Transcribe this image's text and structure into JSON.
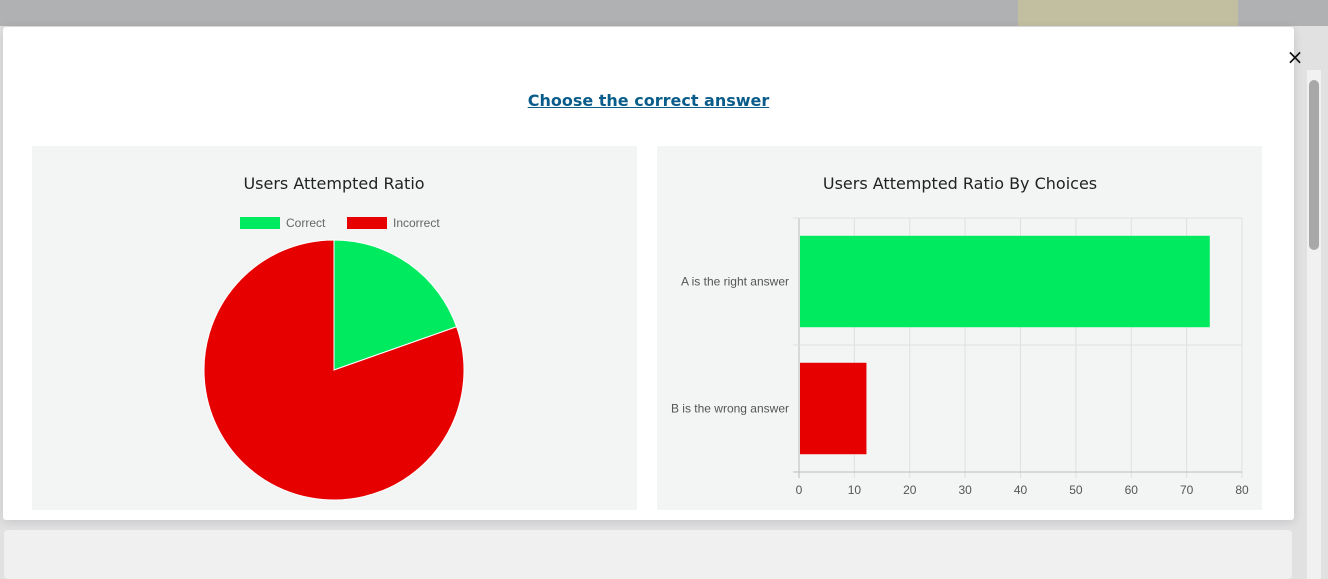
{
  "modal": {
    "question": "Choose the correct answer",
    "close_symbol": "×"
  },
  "colors": {
    "correct": "#00ea60",
    "incorrect": "#e60000",
    "link": "#0a5d8a"
  },
  "chart_data": [
    {
      "type": "pie",
      "title": "Users Attempted Ratio",
      "legend_position": "top",
      "labels": [
        "Correct",
        "Incorrect"
      ],
      "values": [
        19.6,
        80.4
      ],
      "unit": "%"
    },
    {
      "type": "bar",
      "orientation": "horizontal",
      "title": "Users Attempted Ratio By Choices",
      "categories": [
        "A is the right answer",
        "B is the wrong answer"
      ],
      "values": [
        74,
        12
      ],
      "xlim": [
        0,
        80
      ],
      "xticks": [
        0,
        10,
        20,
        30,
        40,
        50,
        60,
        70,
        80
      ],
      "grid": true,
      "legend": false
    }
  ]
}
